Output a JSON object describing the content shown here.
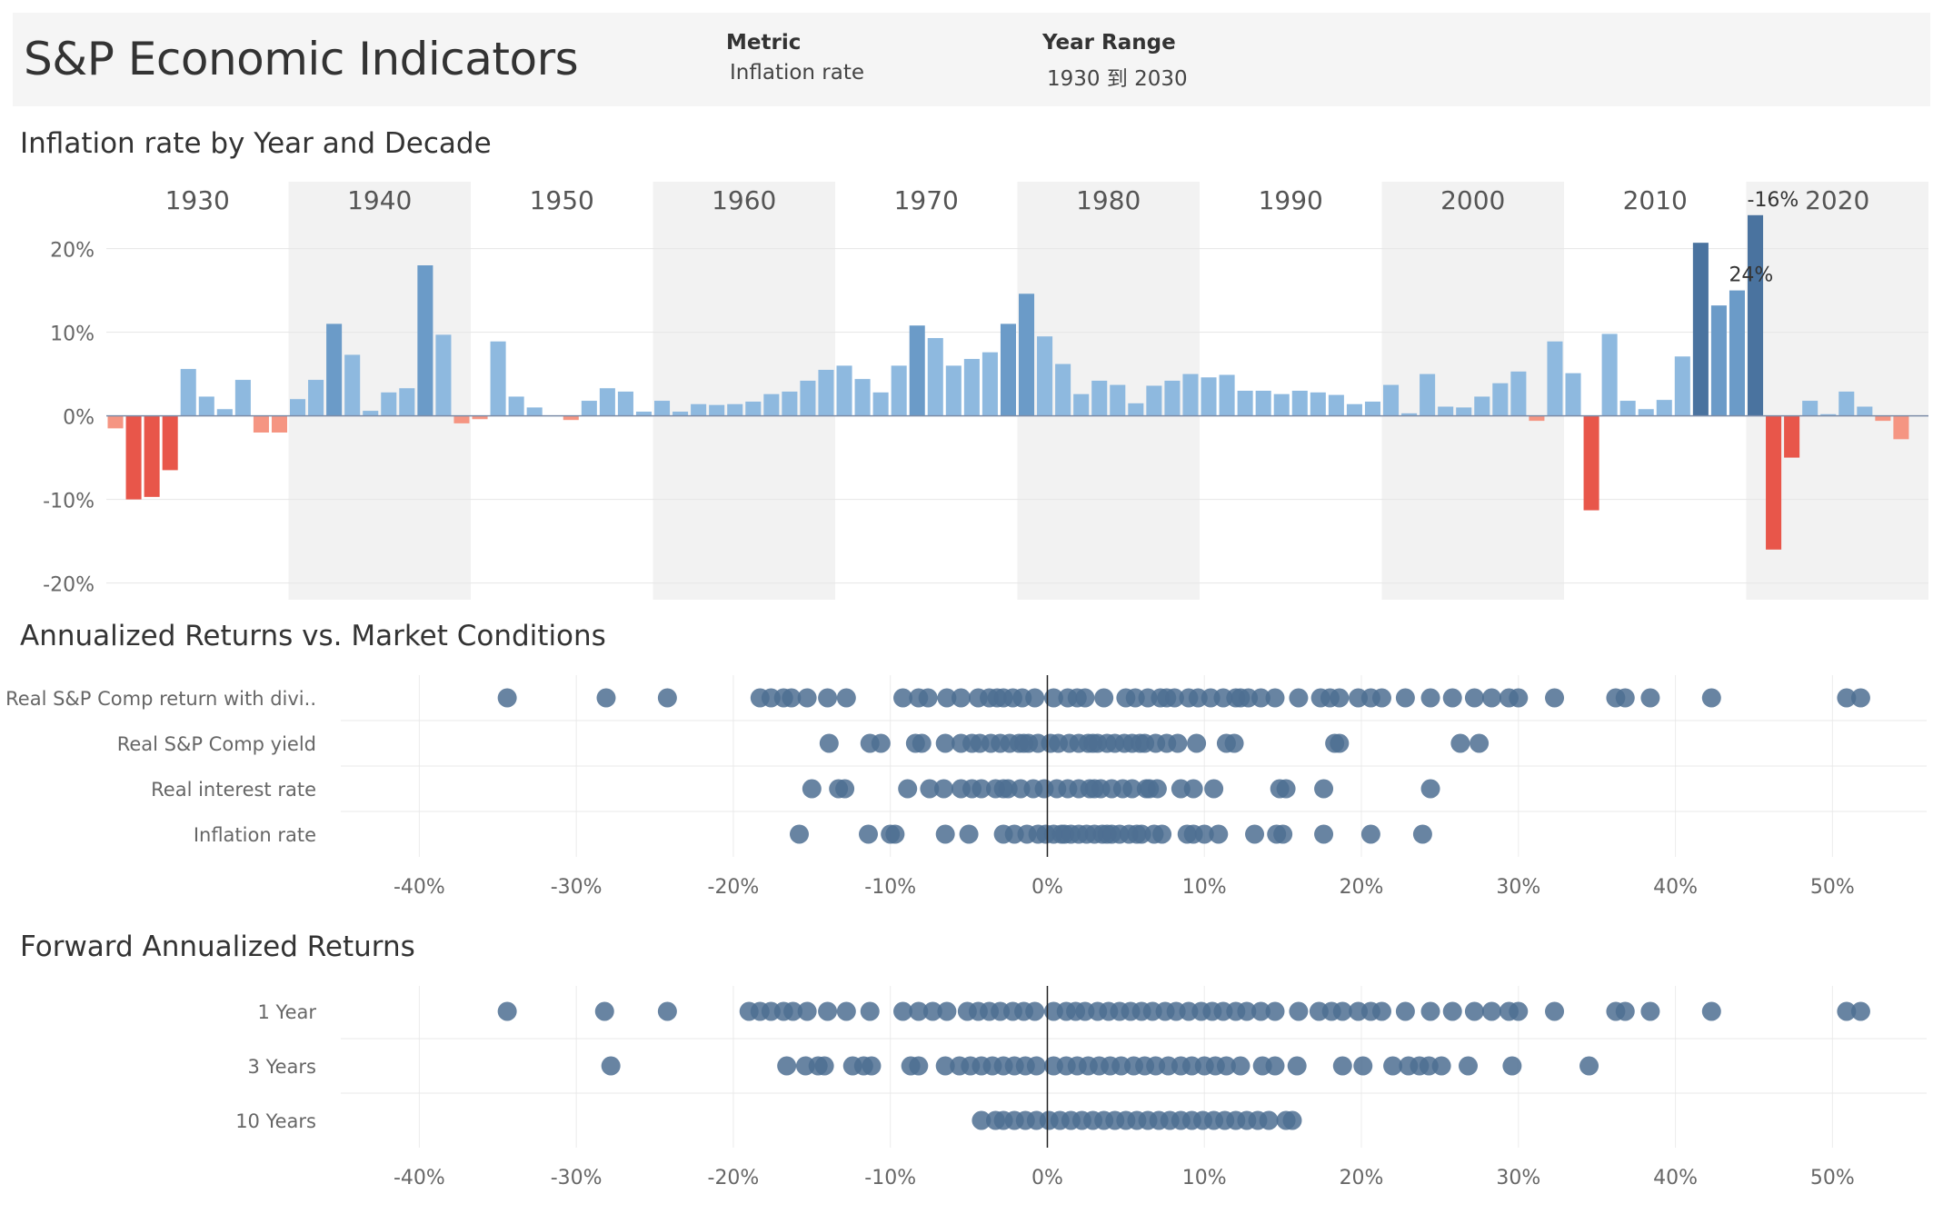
{
  "header": {
    "title": "S&P Economic Indicators",
    "filters": [
      {
        "label": "Metric",
        "value": "Inflation rate"
      },
      {
        "label": "Year Range",
        "value": "1930 到 2030"
      }
    ]
  },
  "sections": {
    "bar_title": "Inflation rate by Year and Decade",
    "scatter1_title": "Annualized Returns vs. Market Conditions",
    "scatter2_title": "Forward Annualized Returns"
  },
  "colors": {
    "pos_light": "#8eb9df",
    "pos_mid": "#6b9bc8",
    "pos_dark": "#4a739f",
    "neg_light": "#f59582",
    "neg_dark": "#e8564a",
    "dot": "#4e6e92",
    "band": "#f2f2f2"
  },
  "chart_data": [
    {
      "type": "bar",
      "title": "Inflation rate by Year and Decade",
      "decades": [
        "1930",
        "1940",
        "1950",
        "1960",
        "1970",
        "1980",
        "1990",
        "2000",
        "2010",
        "2020"
      ],
      "ylim": [
        -22,
        28
      ],
      "yticks": [
        -20,
        -10,
        0,
        10,
        20
      ],
      "ytick_labels": [
        "-20%",
        "-10%",
        "0%",
        "10%",
        "20%"
      ],
      "annotations": [
        {
          "year": 2019,
          "text": "24%"
        },
        {
          "year": 2020,
          "text": "-16%"
        }
      ],
      "x": [
        1930,
        1931,
        1932,
        1933,
        1934,
        1935,
        1936,
        1937,
        1938,
        1939,
        1940,
        1941,
        1942,
        1943,
        1944,
        1945,
        1946,
        1947,
        1948,
        1949,
        1950,
        1951,
        1952,
        1953,
        1954,
        1955,
        1956,
        1957,
        1958,
        1959,
        1960,
        1961,
        1962,
        1963,
        1964,
        1965,
        1966,
        1967,
        1968,
        1969,
        1970,
        1971,
        1972,
        1973,
        1974,
        1975,
        1976,
        1977,
        1978,
        1979,
        1980,
        1981,
        1982,
        1983,
        1984,
        1985,
        1986,
        1987,
        1988,
        1989,
        1990,
        1991,
        1992,
        1993,
        1994,
        1995,
        1996,
        1997,
        1998,
        1999,
        2000,
        2001,
        2002,
        2003,
        2004,
        2005,
        2006,
        2007,
        2008,
        2009,
        2010,
        2011,
        2012,
        2013,
        2014,
        2015,
        2016,
        2017,
        2018,
        2019,
        2020,
        2021,
        2022,
        2023,
        2024,
        2025,
        2026,
        2027,
        2028,
        2029
      ],
      "values": [
        -1.5,
        -10,
        -9.7,
        -6.5,
        5.6,
        2.3,
        0.8,
        4.3,
        -2,
        -2,
        2,
        4.3,
        11,
        7.3,
        0.6,
        2.8,
        3.3,
        18,
        9.7,
        -0.9,
        -0.4,
        8.9,
        2.3,
        1,
        0,
        -0.5,
        1.8,
        3.3,
        2.9,
        0.5,
        1.8,
        0.5,
        1.4,
        1.3,
        1.4,
        1.7,
        2.6,
        2.9,
        4.2,
        5.5,
        6,
        4.4,
        2.8,
        6,
        10.8,
        9.3,
        6,
        6.8,
        7.6,
        11,
        14.6,
        9.5,
        6.2,
        2.6,
        4.2,
        3.7,
        1.5,
        3.6,
        4.2,
        5,
        4.6,
        4.9,
        3,
        3,
        2.6,
        3,
        2.8,
        2.5,
        1.4,
        1.7,
        3.7,
        0.3,
        5,
        1.1,
        1,
        2.3,
        3.9,
        5.3,
        -0.6,
        8.9,
        5.1,
        -11.3,
        9.8,
        1.8,
        0.8,
        1.9,
        7.1,
        20.7,
        13.2,
        15,
        24,
        -16,
        -5,
        1.8,
        0.2,
        2.9,
        1.1,
        -0.6,
        -2.8,
        0
      ]
    },
    {
      "type": "scatter",
      "title": "Annualized Returns vs. Market Conditions",
      "categories": [
        "Real S&P Comp return with divi..",
        "Real S&P Comp yield",
        "Real interest rate",
        "Inflation rate"
      ],
      "xlim": [
        -45,
        56
      ],
      "xticks": [
        -40,
        -30,
        -20,
        -10,
        0,
        10,
        20,
        30,
        40,
        50
      ],
      "xtick_labels": [
        "-40%",
        "-30%",
        "-20%",
        "-10%",
        "0%",
        "10%",
        "20%",
        "30%",
        "40%",
        "50%"
      ],
      "series": [
        {
          "values": [
            -34.4,
            -28.1,
            -24.2,
            -18.3,
            -17.6,
            -16.8,
            -16.3,
            -15.3,
            -14.0,
            -12.8,
            -9.2,
            -8.2,
            -7.6,
            -6.4,
            -5.5,
            -4.4,
            -3.7,
            -3.2,
            -2.8,
            -1.6,
            -0.8,
            0.4,
            1.3,
            1.9,
            2.4,
            3.6,
            5.0,
            5.6,
            6.4,
            7.2,
            8.1,
            9.0,
            9.6,
            10.4,
            11.2,
            12.0,
            12.8,
            13.6,
            14.5,
            16.0,
            17.4,
            18.0,
            18.6,
            19.8,
            20.6,
            21.3,
            22.8,
            24.4,
            25.8,
            27.2,
            28.3,
            29.4,
            30.0,
            32.3,
            36.2,
            36.8,
            38.4,
            42.3,
            50.9,
            51.8,
            12.3,
            7.6,
            -2.2
          ]
        },
        {
          "values": [
            -13.9,
            -11.3,
            -10.6,
            -8.4,
            -8.0,
            -6.5,
            -4.8,
            -4.3,
            -3.6,
            -3.0,
            -2.4,
            -1.8,
            -1.2,
            -0.6,
            0.2,
            0.7,
            1.4,
            2.0,
            2.6,
            3.2,
            3.8,
            4.3,
            4.9,
            5.4,
            6.2,
            6.9,
            7.6,
            8.3,
            9.5,
            11.4,
            11.9,
            18.3,
            18.6,
            26.3,
            27.5,
            -5.5,
            -1.5,
            2.9,
            5.9
          ]
        },
        {
          "values": [
            -15.0,
            -13.3,
            -12.9,
            -8.9,
            -7.5,
            -6.6,
            -5.5,
            -4.8,
            -4.2,
            -3.3,
            -2.5,
            -1.7,
            -0.9,
            -0.2,
            0.6,
            1.3,
            2.0,
            2.7,
            3.4,
            4.1,
            4.8,
            5.4,
            6.3,
            7.0,
            8.5,
            9.3,
            10.6,
            14.8,
            15.2,
            17.6,
            24.4,
            -2.8,
            3.0,
            6.5
          ]
        },
        {
          "values": [
            -15.8,
            -11.4,
            -10.0,
            -9.7,
            -6.5,
            -5.0,
            -2.8,
            -2.1,
            -1.3,
            -0.6,
            -0.1,
            0.4,
            0.9,
            1.5,
            2.0,
            2.5,
            3.0,
            3.5,
            4.1,
            4.6,
            5.2,
            5.7,
            6.0,
            6.8,
            7.3,
            8.9,
            9.3,
            10.0,
            10.9,
            13.2,
            14.6,
            15.0,
            17.6,
            20.6,
            23.9,
            1.1,
            3.8
          ]
        }
      ]
    },
    {
      "type": "scatter",
      "title": "Forward Annualized Returns",
      "categories": [
        "1 Year",
        "3 Years",
        "10 Years"
      ],
      "xlim": [
        -45,
        56
      ],
      "xticks": [
        -40,
        -30,
        -20,
        -10,
        0,
        10,
        20,
        30,
        40,
        50
      ],
      "xtick_labels": [
        "-40%",
        "-30%",
        "-20%",
        "-10%",
        "0%",
        "10%",
        "20%",
        "30%",
        "40%",
        "50%"
      ],
      "series": [
        {
          "values": [
            -34.4,
            -28.2,
            -24.2,
            -19.0,
            -18.3,
            -17.6,
            -16.8,
            -16.2,
            -15.3,
            -14.0,
            -12.8,
            -11.3,
            -9.2,
            -8.2,
            -7.3,
            -6.4,
            -5.1,
            -4.4,
            -3.7,
            -3.0,
            -2.2,
            -1.5,
            -0.8,
            0.4,
            1.2,
            1.8,
            2.4,
            3.2,
            3.9,
            4.6,
            5.3,
            6.0,
            6.7,
            7.5,
            8.2,
            9.0,
            9.8,
            10.5,
            11.2,
            12.0,
            12.7,
            13.6,
            14.5,
            16.0,
            17.3,
            18.1,
            18.8,
            19.8,
            20.6,
            21.3,
            22.8,
            24.4,
            25.8,
            27.2,
            28.3,
            29.4,
            30.0,
            32.3,
            36.2,
            36.8,
            38.4,
            42.3,
            50.9,
            51.8
          ]
        },
        {
          "values": [
            -27.8,
            -16.6,
            -15.4,
            -14.6,
            -14.2,
            -12.4,
            -11.7,
            -11.2,
            -8.7,
            -8.2,
            -6.5,
            -5.6,
            -4.9,
            -4.2,
            -3.5,
            -2.8,
            -2.1,
            -1.4,
            -0.7,
            0.4,
            1.2,
            1.9,
            2.6,
            3.3,
            4.0,
            4.7,
            5.5,
            6.2,
            6.9,
            7.7,
            8.5,
            9.2,
            10.0,
            10.7,
            11.4,
            12.3,
            13.7,
            14.5,
            15.9,
            18.8,
            20.1,
            22.0,
            23.0,
            23.7,
            24.3,
            25.1,
            26.8,
            29.6,
            34.5
          ]
        },
        {
          "values": [
            -4.2,
            -3.3,
            -2.8,
            -2.1,
            -1.4,
            -0.7,
            0.1,
            0.8,
            1.5,
            2.2,
            2.9,
            3.6,
            4.3,
            5.0,
            5.7,
            6.4,
            7.1,
            7.8,
            8.5,
            9.2,
            9.9,
            10.6,
            11.3,
            12.0,
            12.7,
            13.4,
            14.1,
            15.2,
            15.6
          ]
        }
      ]
    }
  ]
}
